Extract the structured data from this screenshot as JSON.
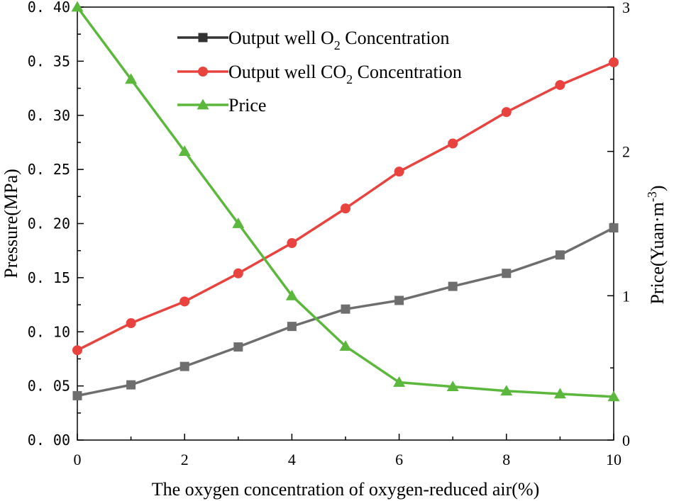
{
  "chart_data": {
    "type": "line",
    "title": "",
    "xlabel": "The oxygen concentration of oxygen-reduced air(%)",
    "ylabel_left": "Pressure(MPa)",
    "ylabel_right": {
      "text": "Price(Yuan·m",
      "superscript": "-3",
      "closing": ")"
    },
    "xlim": [
      0,
      10
    ],
    "ylim_left": [
      0,
      0.4
    ],
    "ylim_right": [
      0,
      3
    ],
    "x_ticks": [
      "0",
      "2",
      "4",
      "6",
      "8",
      "10"
    ],
    "y_left_ticks": [
      "0.00",
      "0.05",
      "0.10",
      "0.15",
      "0.20",
      "0.25",
      "0.30",
      "0.35",
      "0.40"
    ],
    "y_right_ticks": [
      "0",
      "1",
      "2",
      "3"
    ],
    "grid": false,
    "legend_position": "top-center",
    "x": [
      0,
      1,
      2,
      3,
      4,
      5,
      6,
      7,
      8,
      9,
      10
    ],
    "series": [
      {
        "name": "Output well O2 Concentration",
        "legend": {
          "prefix": "Output well O",
          "subscript": "2",
          "suffix": " Concentration"
        },
        "axis": "left",
        "marker": "square",
        "color": "#6e6e6e",
        "legend_color": "#333333",
        "values": [
          0.041,
          0.051,
          0.068,
          0.086,
          0.105,
          0.121,
          0.129,
          0.142,
          0.154,
          0.171,
          0.196
        ]
      },
      {
        "name": "Output well CO2 Concentration",
        "legend": {
          "prefix": "Output well CO",
          "subscript": "2",
          "suffix": " Concentration"
        },
        "axis": "left",
        "marker": "circle",
        "color": "#e8433f",
        "legend_color": "#e8433f",
        "values": [
          0.083,
          0.108,
          0.128,
          0.154,
          0.182,
          0.214,
          0.248,
          0.274,
          0.303,
          0.328,
          0.349
        ]
      },
      {
        "name": "Price",
        "legend": {
          "prefix": "Price",
          "subscript": "",
          "suffix": ""
        },
        "axis": "right",
        "marker": "triangle",
        "color": "#5cb83d",
        "legend_color": "#5cb83d",
        "values": [
          3.0,
          2.5,
          2.0,
          1.5,
          1.0,
          0.65,
          0.4,
          0.37,
          0.34,
          0.32,
          0.3
        ]
      }
    ]
  }
}
